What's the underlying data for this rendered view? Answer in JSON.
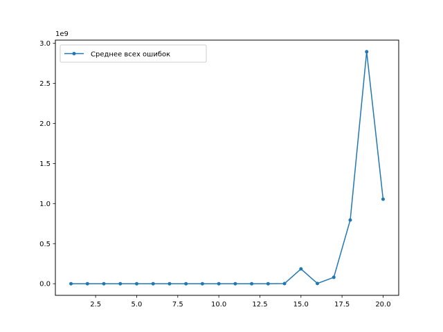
{
  "chart_data": {
    "type": "line",
    "title": "",
    "xlabel": "",
    "ylabel": "",
    "offset_label": "1e9",
    "x": [
      1,
      2,
      3,
      4,
      5,
      6,
      7,
      8,
      9,
      10,
      11,
      12,
      13,
      14,
      15,
      16,
      17,
      18,
      19,
      20
    ],
    "series": [
      {
        "name": "Среднее всех ошибок",
        "color": "#1f77b4",
        "marker": "dot",
        "values": [
          0.0,
          0.0,
          0.0,
          0.0,
          0.0,
          0.0,
          0.0,
          0.0,
          0.0,
          0.0,
          0.0,
          0.0,
          0.0,
          0.002,
          0.185,
          0.003,
          0.08,
          0.795,
          2.895,
          1.055
        ]
      }
    ],
    "xlim": [
      0.05,
      20.95
    ],
    "ylim": [
      -0.145,
      3.04
    ],
    "xticks": [
      2.5,
      5.0,
      7.5,
      10.0,
      12.5,
      15.0,
      17.5,
      20.0
    ],
    "xtick_labels": [
      "2.5",
      "5.0",
      "7.5",
      "10.0",
      "12.5",
      "15.0",
      "17.5",
      "20.0"
    ],
    "yticks": [
      0.0,
      0.5,
      1.0,
      1.5,
      2.0,
      2.5,
      3.0
    ],
    "ytick_labels": [
      "0.0",
      "0.5",
      "1.0",
      "1.5",
      "2.0",
      "2.5",
      "3.0"
    ],
    "grid": false,
    "legend_position": "top-left"
  }
}
